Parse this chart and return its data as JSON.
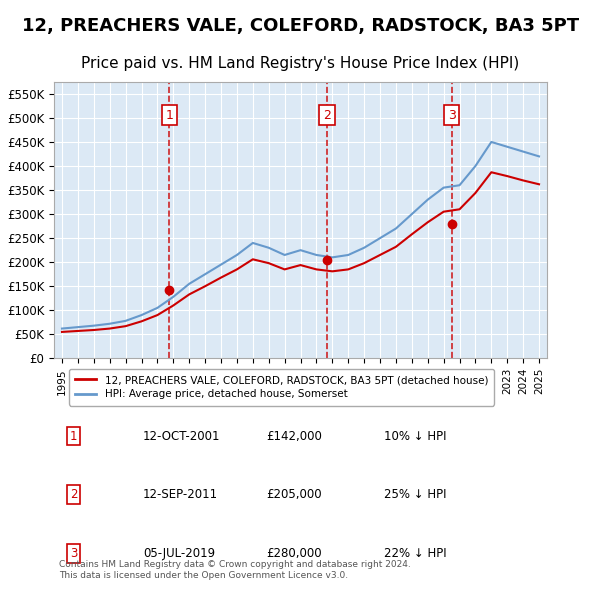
{
  "title": "12, PREACHERS VALE, COLEFORD, RADSTOCK, BA3 5PT",
  "subtitle": "Price paid vs. HM Land Registry's House Price Index (HPI)",
  "title_fontsize": 13,
  "subtitle_fontsize": 11,
  "background_color": "#dce9f5",
  "plot_bg_color": "#dce9f5",
  "legend_label_red": "12, PREACHERS VALE, COLEFORD, RADSTOCK, BA3 5PT (detached house)",
  "legend_label_blue": "HPI: Average price, detached house, Somerset",
  "footer": "Contains HM Land Registry data © Crown copyright and database right 2024.\nThis data is licensed under the Open Government Licence v3.0.",
  "sale_dates": [
    "2001-10-12",
    "2011-09-12",
    "2019-07-05"
  ],
  "sale_prices": [
    142000,
    205000,
    280000
  ],
  "sale_labels": [
    "1",
    "2",
    "3"
  ],
  "table_rows": [
    [
      "1",
      "12-OCT-2001",
      "£142,000",
      "10% ↓ HPI"
    ],
    [
      "2",
      "12-SEP-2011",
      "£205,000",
      "25% ↓ HPI"
    ],
    [
      "3",
      "05-JUL-2019",
      "£280,000",
      "22% ↓ HPI"
    ]
  ],
  "hpi_years": [
    1995,
    1996,
    1997,
    1998,
    1999,
    2000,
    2001,
    2002,
    2003,
    2004,
    2005,
    2006,
    2007,
    2008,
    2009,
    2010,
    2011,
    2012,
    2013,
    2014,
    2015,
    2016,
    2017,
    2018,
    2019,
    2020,
    2021,
    2022,
    2023,
    2024,
    2025
  ],
  "hpi_values": [
    62000,
    65000,
    68000,
    72000,
    78000,
    90000,
    105000,
    128000,
    155000,
    175000,
    195000,
    215000,
    240000,
    230000,
    215000,
    225000,
    215000,
    210000,
    215000,
    230000,
    250000,
    270000,
    300000,
    330000,
    355000,
    360000,
    400000,
    450000,
    440000,
    430000,
    420000
  ],
  "red_years": [
    1995,
    1996,
    1997,
    1998,
    1999,
    2000,
    2001,
    2002,
    2003,
    2004,
    2005,
    2006,
    2007,
    2008,
    2009,
    2010,
    2011,
    2012,
    2013,
    2014,
    2015,
    2016,
    2017,
    2018,
    2019,
    2020,
    2021,
    2022,
    2023,
    2024,
    2025
  ],
  "red_values": [
    55000,
    57000,
    59000,
    62000,
    67000,
    77000,
    90000,
    110000,
    133000,
    150000,
    168000,
    185000,
    206000,
    198000,
    185000,
    194000,
    185000,
    181000,
    185000,
    198000,
    215000,
    232000,
    258000,
    283000,
    305000,
    310000,
    344000,
    387000,
    379000,
    370000,
    362000
  ],
  "ylim": [
    0,
    575000
  ],
  "xlim_start": 1995,
  "xlim_end": 2025.5,
  "yticks": [
    0,
    50000,
    100000,
    150000,
    200000,
    250000,
    300000,
    350000,
    400000,
    450000,
    500000,
    550000
  ],
  "ytick_labels": [
    "£0",
    "£50K",
    "£100K",
    "£150K",
    "£200K",
    "£250K",
    "£300K",
    "£350K",
    "£400K",
    "£450K",
    "£500K",
    "£550K"
  ],
  "xtick_years": [
    1995,
    1996,
    1997,
    1998,
    1999,
    2000,
    2001,
    2002,
    2003,
    2004,
    2005,
    2006,
    2007,
    2008,
    2009,
    2010,
    2011,
    2012,
    2013,
    2014,
    2015,
    2016,
    2017,
    2018,
    2019,
    2020,
    2021,
    2022,
    2023,
    2024,
    2025
  ],
  "red_color": "#cc0000",
  "blue_color": "#6699cc",
  "dashed_color": "#cc0000",
  "marker_color": "#cc0000",
  "grid_color": "#ffffff",
  "label_box_color": "#cc0000"
}
